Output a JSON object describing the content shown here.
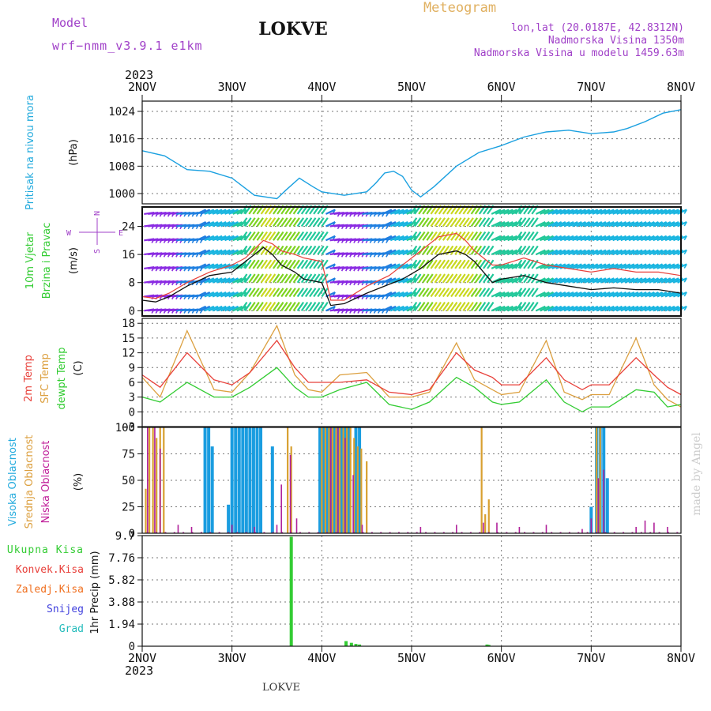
{
  "header": {
    "model_label": "Model",
    "model_name": "wrf−nmm_v3.9.1 e1km",
    "station": "LOKVE",
    "meteogram": "Meteogram",
    "lonlat": "lon,lat (20.0187E, 42.8312N)",
    "altitude": "Nadmorska Visina 1350m",
    "model_altitude": "Nadmorska Visina u modelu 1459.63m"
  },
  "footer": {
    "station": "LOKVE",
    "watermark": "made by Angel"
  },
  "colors": {
    "pressure": "#1aa0e0",
    "temp2m": "#e8403a",
    "sfc": "#dca040",
    "dewpt": "#33cc33",
    "cloud_high": "#1a9de0",
    "cloud_mid": "#d8a030",
    "cloud_low": "#b0209a",
    "precip": "#33cc33",
    "purple_text": "#a040c8",
    "orange_text": "#e0b060",
    "label_cyan": "#22aadd"
  },
  "time_axis": {
    "year": "2023",
    "ticks": [
      "2NOV",
      "3NOV",
      "4NOV",
      "5NOV",
      "6NOV",
      "7NOV",
      "8NOV"
    ]
  },
  "chart_data": [
    {
      "type": "line",
      "id": "pressure",
      "ylabel": [
        "Pritisak na nivou mora",
        "(hPa)"
      ],
      "yticks": [
        1000,
        1008,
        1016,
        1024
      ],
      "ylim": [
        997,
        1027
      ],
      "x": [
        0,
        0.25,
        0.5,
        0.75,
        1,
        1.25,
        1.5,
        1.6,
        1.75,
        1.9,
        2,
        2.25,
        2.5,
        2.6,
        2.7,
        2.8,
        2.9,
        3,
        3.1,
        3.25,
        3.5,
        3.75,
        4,
        4.25,
        4.5,
        4.75,
        5,
        5.25,
        5.4,
        5.6,
        5.8,
        6
      ],
      "series": [
        {
          "values": [
            1012.5,
            1011,
            1007,
            1006.5,
            1004.5,
            999.5,
            998.5,
            1001,
            1004.5,
            1002,
            1000.5,
            999.5,
            1000.5,
            1003,
            1006,
            1006.5,
            1005,
            1001,
            999,
            1002,
            1008,
            1012,
            1014,
            1016.5,
            1018,
            1018.5,
            1017.5,
            1018,
            1019,
            1021,
            1023.5,
            1024.5
          ]
        }
      ],
      "grid": true
    },
    {
      "type": "line",
      "id": "wind",
      "ylabel": [
        "10m Vjetar",
        "Brzina i Pravac",
        "(m/s)"
      ],
      "yticks": [
        0,
        8,
        16,
        24
      ],
      "ylim": [
        -1.5,
        29.5
      ],
      "x": [
        0,
        0.15,
        0.3,
        0.5,
        0.75,
        1,
        1.15,
        1.35,
        1.45,
        1.55,
        1.7,
        1.8,
        2,
        2.1,
        2.25,
        2.5,
        2.75,
        2.9,
        3.1,
        3.3,
        3.5,
        3.6,
        3.7,
        3.9,
        4,
        4.25,
        4.5,
        4.75,
        5,
        5.25,
        5.5,
        5.75,
        6
      ],
      "series": [
        {
          "values": [
            3,
            2.5,
            4,
            7,
            10,
            11,
            14,
            18,
            16,
            13,
            11,
            9,
            8,
            1.5,
            2,
            5,
            7.5,
            9,
            12,
            16,
            17,
            16,
            14,
            8,
            9,
            10,
            8,
            7,
            6,
            6.5,
            6,
            6,
            5
          ]
        },
        {
          "values": [
            4,
            3.5,
            5,
            8,
            11,
            13,
            15,
            20,
            19,
            17,
            16,
            15,
            14,
            3,
            3,
            7,
            10,
            13,
            17,
            21,
            22,
            20,
            17,
            13,
            13,
            15,
            13,
            12,
            11,
            12,
            11,
            11,
            10
          ]
        }
      ],
      "legend_compass": [
        "N",
        "S",
        "W",
        "E"
      ],
      "grid": true
    },
    {
      "type": "line",
      "id": "temperature",
      "ylabel": [
        "2m Temp",
        "SFC Temp",
        "dewpt Temp",
        "(C)"
      ],
      "yticks": [
        -3,
        0,
        3,
        6,
        9,
        12,
        15,
        18
      ],
      "ylim": [
        -3,
        19
      ],
      "x": [
        0,
        0.2,
        0.5,
        0.8,
        1,
        1.2,
        1.5,
        1.7,
        1.85,
        2,
        2.2,
        2.5,
        2.75,
        3,
        3.2,
        3.5,
        3.7,
        3.9,
        4,
        4.2,
        4.5,
        4.7,
        4.9,
        5,
        5.2,
        5.5,
        5.7,
        5.85,
        6
      ],
      "series": [
        {
          "name": "2m Temp",
          "values": [
            7.5,
            5,
            12,
            6.5,
            5.5,
            8,
            14.5,
            9,
            6,
            6,
            6,
            6.5,
            4,
            3.5,
            4.5,
            12,
            8.5,
            7,
            5.5,
            5.5,
            11,
            6.5,
            4.5,
            5.5,
            5.5,
            11,
            7.5,
            5,
            3.5
          ]
        },
        {
          "name": "SFC Temp",
          "values": [
            7,
            3,
            16.5,
            4.5,
            4,
            8,
            17.5,
            7.5,
            4.5,
            4,
            7.5,
            8,
            3,
            3,
            4,
            14,
            6.5,
            4.5,
            3.5,
            4,
            14.5,
            4,
            2.5,
            3.5,
            3.5,
            15,
            5.5,
            2.5,
            1
          ]
        },
        {
          "name": "dewpt Temp",
          "values": [
            3,
            2,
            6,
            3,
            3,
            5,
            9,
            5,
            3,
            3,
            4.5,
            6,
            1.5,
            0.5,
            2,
            7,
            5,
            2,
            1.5,
            2,
            6.5,
            2,
            0,
            1,
            1,
            4.5,
            4,
            1,
            1.5
          ]
        }
      ],
      "grid": true
    },
    {
      "type": "bar",
      "id": "clouds",
      "ylabel": [
        "Visoka Oblacnost",
        "Srednja Oblacnost",
        "Niska Oblacnost",
        "(%)"
      ],
      "yticks": [
        0,
        25,
        50,
        75,
        100
      ],
      "ylim": [
        0,
        100
      ],
      "series": [
        {
          "name": "Visoka Oblacnost",
          "points": [
            [
              0.7,
              100
            ],
            [
              0.74,
              100
            ],
            [
              0.78,
              82
            ],
            [
              0.96,
              27
            ],
            [
              1.0,
              100
            ],
            [
              1.04,
              100
            ],
            [
              1.08,
              100
            ],
            [
              1.12,
              100
            ],
            [
              1.16,
              100
            ],
            [
              1.2,
              100
            ],
            [
              1.24,
              100
            ],
            [
              1.28,
              100
            ],
            [
              1.32,
              100
            ],
            [
              1.45,
              82
            ],
            [
              1.98,
              100
            ],
            [
              2.02,
              100
            ],
            [
              2.06,
              100
            ],
            [
              2.1,
              100
            ],
            [
              2.14,
              100
            ],
            [
              2.18,
              100
            ],
            [
              2.22,
              100
            ],
            [
              2.26,
              100
            ],
            [
              2.3,
              100
            ],
            [
              2.38,
              100
            ],
            [
              2.42,
              100
            ],
            [
              5.0,
              25
            ],
            [
              5.06,
              100
            ],
            [
              5.1,
              100
            ],
            [
              5.14,
              100
            ],
            [
              5.18,
              52
            ]
          ]
        },
        {
          "name": "Srednja Oblacnost",
          "points": [
            [
              0.04,
              42
            ],
            [
              0.08,
              100
            ],
            [
              0.12,
              100
            ],
            [
              0.16,
              90
            ],
            [
              0.2,
              100
            ],
            [
              0.24,
              100
            ],
            [
              1.62,
              100
            ],
            [
              1.66,
              82
            ],
            [
              2.0,
              100
            ],
            [
              2.04,
              100
            ],
            [
              2.08,
              100
            ],
            [
              2.12,
              100
            ],
            [
              2.16,
              100
            ],
            [
              2.2,
              100
            ],
            [
              2.24,
              100
            ],
            [
              2.28,
              100
            ],
            [
              2.32,
              100
            ],
            [
              2.36,
              90
            ],
            [
              2.4,
              82
            ],
            [
              2.44,
              80
            ],
            [
              2.5,
              68
            ],
            [
              3.78,
              100
            ],
            [
              3.82,
              18
            ],
            [
              3.86,
              32
            ],
            [
              5.06,
              100
            ],
            [
              5.1,
              100
            ]
          ]
        },
        {
          "name": "Niska Oblacnost",
          "points": [
            [
              0.06,
              100
            ],
            [
              0.14,
              100
            ],
            [
              0.2,
              80
            ],
            [
              0.4,
              8
            ],
            [
              0.55,
              6
            ],
            [
              1.0,
              8
            ],
            [
              1.25,
              6
            ],
            [
              1.5,
              8
            ],
            [
              1.55,
              46
            ],
            [
              1.65,
              74
            ],
            [
              1.72,
              14
            ],
            [
              2.1,
              100
            ],
            [
              2.18,
              100
            ],
            [
              2.26,
              90
            ],
            [
              2.35,
              55
            ],
            [
              2.45,
              8
            ],
            [
              3.1,
              6
            ],
            [
              3.5,
              8
            ],
            [
              3.8,
              10
            ],
            [
              3.95,
              10
            ],
            [
              4.2,
              6
            ],
            [
              4.5,
              8
            ],
            [
              4.9,
              4
            ],
            [
              5.0,
              14
            ],
            [
              5.08,
              52
            ],
            [
              5.14,
              60
            ],
            [
              5.5,
              6
            ],
            [
              5.6,
              12
            ],
            [
              5.7,
              10
            ],
            [
              5.85,
              6
            ]
          ]
        }
      ],
      "grid": true
    },
    {
      "type": "bar",
      "id": "precip",
      "ylabel": [
        "1hr Precip (mm)"
      ],
      "legend": [
        "Ukupna Kisa",
        "Konvek.Kisa",
        "Zaledj.Kisa",
        "Snijeg",
        "Grad"
      ],
      "yticks": [
        0,
        1.94,
        3.88,
        5.82,
        7.76,
        9.7
      ],
      "ylim": [
        0,
        9.7
      ],
      "series": [
        {
          "name": "Ukupna Kisa",
          "points": [
            [
              1.66,
              9.6
            ],
            [
              2.27,
              0.45
            ],
            [
              2.33,
              0.3
            ],
            [
              2.38,
              0.2
            ],
            [
              2.42,
              0.15
            ],
            [
              3.84,
              0.15
            ],
            [
              3.86,
              0.12
            ]
          ]
        }
      ],
      "grid": true
    }
  ]
}
